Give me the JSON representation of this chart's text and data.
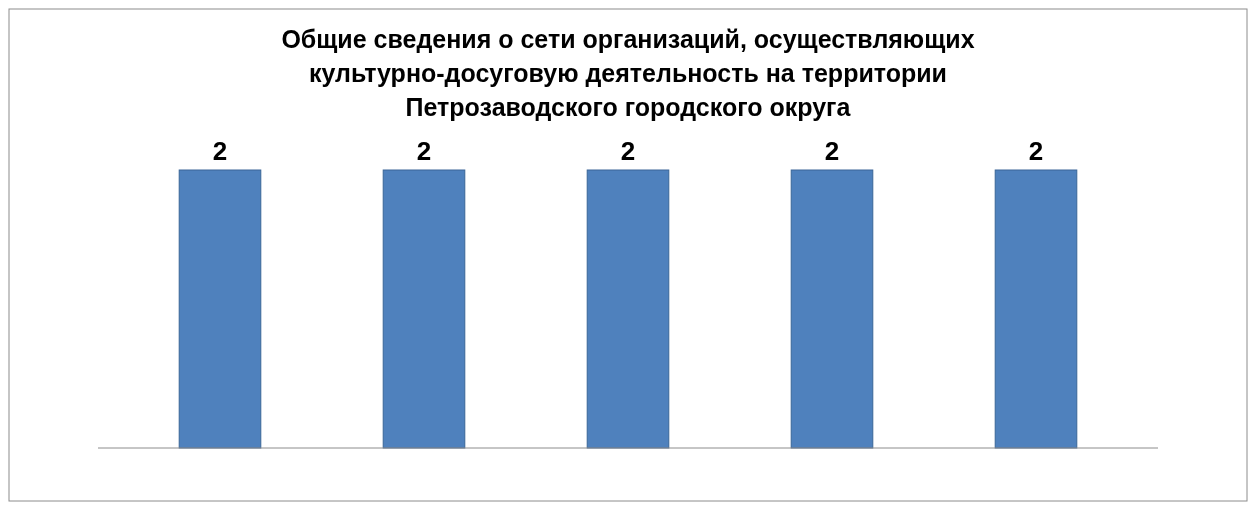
{
  "chart_data": {
    "type": "bar",
    "title": "Общие сведения о сети организаций, осуществляющих культурно-досуговую деятельность на территории Петрозаводского городского округа",
    "categories": [
      null,
      null,
      null,
      null,
      null
    ],
    "values": [
      2,
      2,
      2,
      2,
      2
    ],
    "color": "#4f81bd",
    "data_labels": true
  }
}
